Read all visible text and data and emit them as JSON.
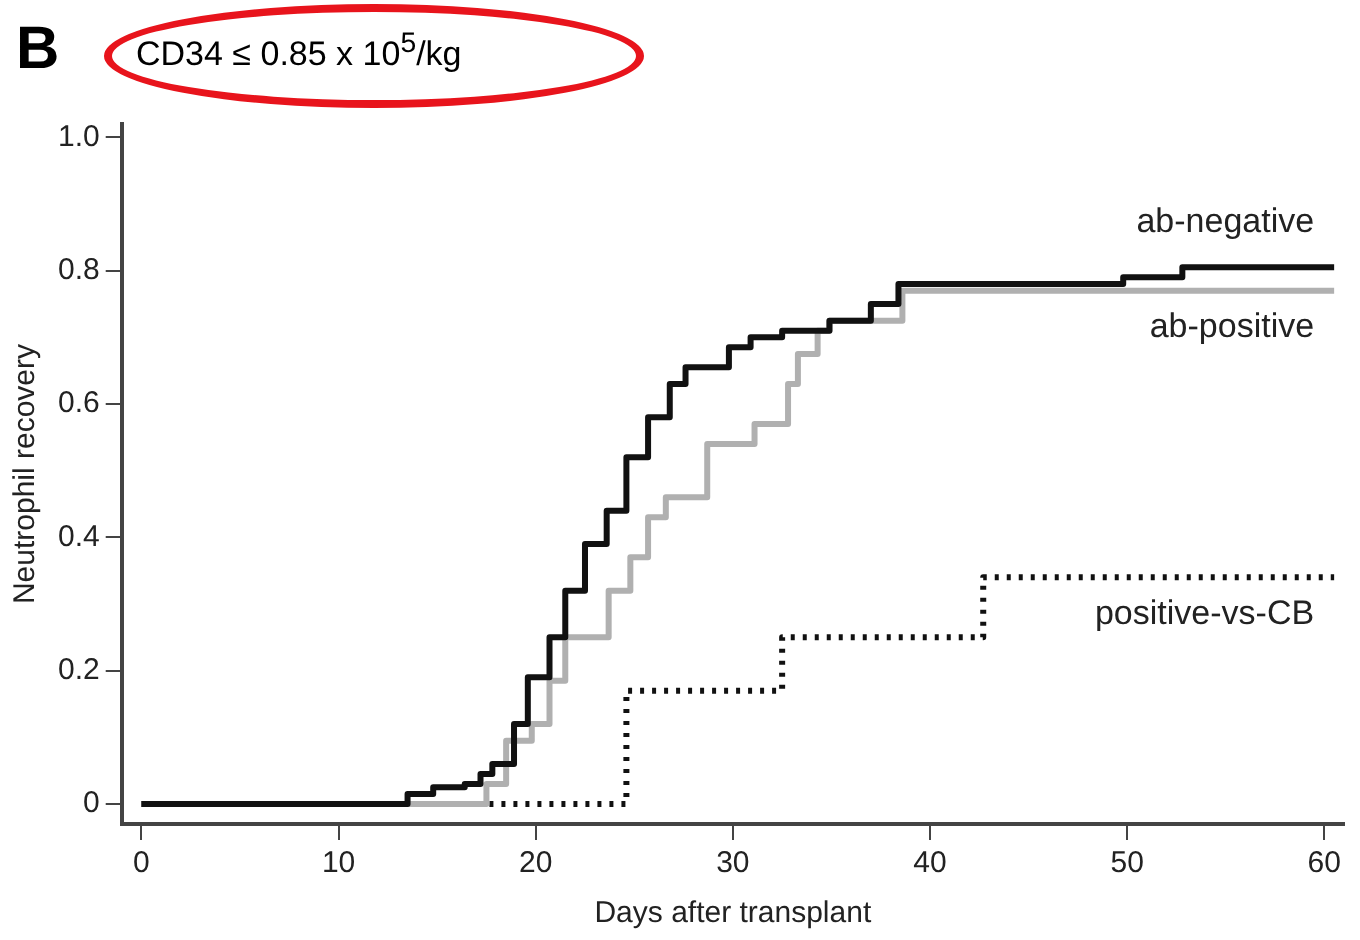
{
  "chart_data": {
    "type": "step",
    "title": "B",
    "subtitle": "CD34 ≤ 0.85 x 10$^{5}$/kg",
    "xlabel": "Days after transplant",
    "ylabel": "Neutrophil recovery",
    "xlim": [
      -1,
      61
    ],
    "xticks": [
      0,
      10,
      20,
      30,
      40,
      50,
      60
    ],
    "ylim": [
      -0.03,
      1.02
    ],
    "yticks": [
      0,
      0.2,
      0.4,
      0.6,
      0.8,
      {
        "value": 1,
        "label": "1.0"
      }
    ],
    "grid": false,
    "legend": false,
    "marker": "none",
    "series": [
      {
        "name": "ab-negative",
        "color": "#111111",
        "line_style": "solid",
        "x": [
          0,
          13.5,
          14.8,
          16.4,
          17.2,
          17.8,
          18.9,
          19.6,
          20.7,
          21.5,
          22.5,
          23.6,
          24.6,
          25.7,
          26.8,
          27.6,
          29.8,
          30.9,
          32.5,
          34.9,
          37,
          38.4,
          49.8,
          52.8,
          60.5
        ],
        "values": [
          0,
          0.015,
          0.025,
          0.03,
          0.045,
          0.06,
          0.12,
          0.19,
          0.25,
          0.32,
          0.39,
          0.44,
          0.52,
          0.58,
          0.63,
          0.655,
          0.685,
          0.7,
          0.71,
          0.725,
          0.75,
          0.78,
          0.79,
          0.805,
          0.805
        ]
      },
      {
        "name": "ab-positive",
        "color": "#b0b0b0",
        "line_style": "solid",
        "x": [
          0,
          17.5,
          18.5,
          19.8,
          20.7,
          21.5,
          23.7,
          24.8,
          25.7,
          26.6,
          28.7,
          31.1,
          32.8,
          33.3,
          34.3,
          34.9,
          38.6,
          60.5
        ],
        "values": [
          0,
          0.03,
          0.095,
          0.12,
          0.185,
          0.25,
          0.32,
          0.37,
          0.43,
          0.46,
          0.54,
          0.57,
          0.63,
          0.675,
          0.71,
          0.725,
          0.77,
          0.77
        ]
      },
      {
        "name": "positive-vs-CB",
        "color": "#111111",
        "line_style": "dotted",
        "x": [
          0,
          24.6,
          32.5,
          42.7,
          60.5
        ],
        "values": [
          0,
          0.17,
          0.25,
          0.34,
          0.34
        ]
      }
    ]
  }
}
